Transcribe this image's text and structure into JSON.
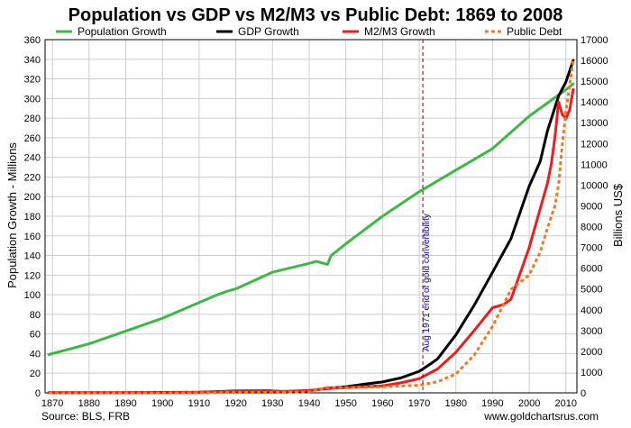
{
  "chart_data": {
    "type": "line",
    "title": "Population vs GDP vs M2/M3 vs Public Debt: 1869 to 2008",
    "ylabel_left": "Population Growth - Millions",
    "ylabel_right": "Billions US$",
    "xlim": [
      1868,
      2013
    ],
    "ylim_left": [
      0,
      360
    ],
    "ylim_right": [
      0,
      17000
    ],
    "x_ticks": [
      1870,
      1880,
      1890,
      1900,
      1910,
      1920,
      1930,
      1940,
      1950,
      1960,
      1970,
      1980,
      1990,
      2000,
      2010
    ],
    "y_ticks_left": [
      0,
      20,
      40,
      60,
      80,
      100,
      120,
      140,
      160,
      180,
      200,
      220,
      240,
      260,
      280,
      300,
      320,
      340,
      360
    ],
    "y_ticks_right": [
      0,
      1000,
      2000,
      3000,
      4000,
      5000,
      6000,
      7000,
      8000,
      9000,
      10000,
      11000,
      12000,
      13000,
      14000,
      15000,
      16000,
      17000
    ],
    "grid": true,
    "legend_position": "top",
    "annotation": {
      "x": 1971,
      "text": "Aug 1971 end of gold convertibility",
      "color": "#0000cc",
      "line_color": "#8b0000"
    },
    "source_text": "Source: BLS, FRB",
    "website_text": "www.goldchartsrus.com",
    "series": [
      {
        "name": "Population Growth",
        "color": "#3cb944",
        "axis": "left",
        "style": "solid",
        "x": [
          1869,
          1880,
          1890,
          1900,
          1910,
          1915,
          1918,
          1920,
          1930,
          1940,
          1942,
          1944,
          1945,
          1946,
          1950,
          1960,
          1970,
          1980,
          1990,
          2000,
          2010,
          2012
        ],
        "y": [
          39,
          50,
          63,
          76,
          92,
          100,
          104,
          106,
          123,
          132,
          134,
          132,
          131,
          140,
          152,
          180,
          205,
          227,
          249,
          282,
          309,
          315
        ]
      },
      {
        "name": "GDP Growth",
        "color": "#000000",
        "axis": "right",
        "style": "solid",
        "x": [
          1869,
          1880,
          1890,
          1900,
          1910,
          1920,
          1929,
          1933,
          1940,
          1945,
          1950,
          1955,
          1960,
          1965,
          1970,
          1973,
          1975,
          1980,
          1985,
          1990,
          1995,
          2000,
          2003,
          2005,
          2008,
          2010,
          2012
        ],
        "y": [
          10,
          12,
          15,
          20,
          33,
          89,
          104,
          57,
          101,
          223,
          294,
          415,
          526,
          719,
          1038,
          1383,
          1637,
          2788,
          4220,
          5803,
          7415,
          9952,
          11142,
          12623,
          14291,
          14964,
          16000
        ]
      },
      {
        "name": "M2/M3 Growth",
        "color": "#ee1c1c",
        "axis": "right",
        "style": "solid",
        "x": [
          1869,
          1880,
          1890,
          1900,
          1910,
          1920,
          1929,
          1933,
          1940,
          1945,
          1950,
          1955,
          1960,
          1965,
          1970,
          1975,
          1980,
          1985,
          1990,
          1993,
          1995,
          2000,
          2005,
          2006,
          2007,
          2008,
          2009,
          2010,
          2011,
          2012
        ],
        "y": [
          5,
          8,
          12,
          15,
          25,
          80,
          90,
          70,
          120,
          200,
          250,
          300,
          340,
          480,
          680,
          1150,
          1950,
          3000,
          4100,
          4250,
          4500,
          7000,
          10100,
          11000,
          12300,
          14000,
          13400,
          13200,
          13600,
          14600
        ]
      },
      {
        "name": "Public Debt",
        "color": "#f07820",
        "axis": "right",
        "style": "dotted",
        "x": [
          1869,
          1880,
          1890,
          1900,
          1910,
          1920,
          1929,
          1940,
          1945,
          1950,
          1960,
          1970,
          1975,
          1980,
          1985,
          1990,
          1995,
          2000,
          2003,
          2005,
          2007,
          2008,
          2009,
          2010,
          2011,
          2012
        ],
        "y": [
          2,
          2,
          2,
          2,
          2,
          25,
          17,
          50,
          260,
          257,
          286,
          370,
          533,
          908,
          1817,
          3206,
          4974,
          5674,
          6783,
          7933,
          9008,
          10025,
          11910,
          13562,
          14790,
          16000
        ]
      }
    ]
  }
}
